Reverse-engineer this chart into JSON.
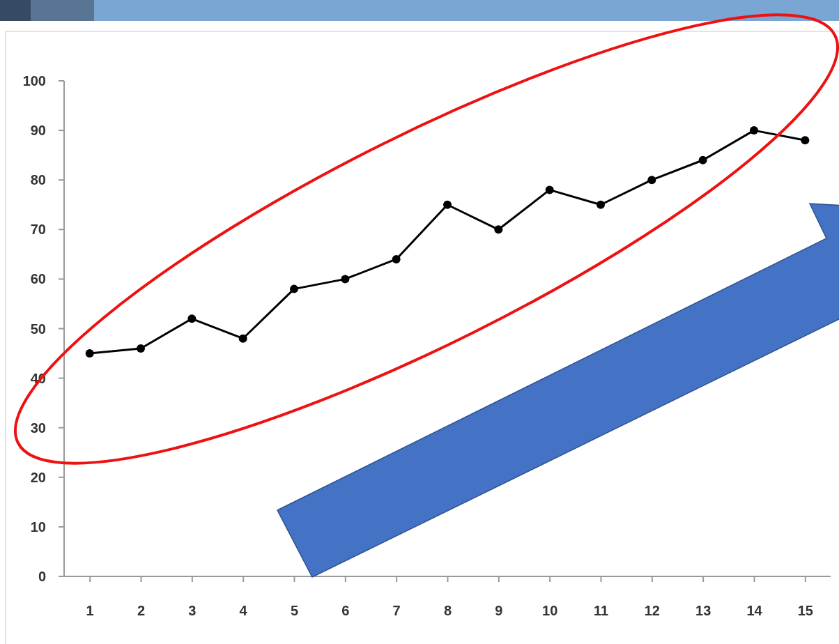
{
  "chart_data": {
    "type": "line",
    "x": [
      1,
      2,
      3,
      4,
      5,
      6,
      7,
      8,
      9,
      10,
      11,
      12,
      13,
      14,
      15
    ],
    "series": [
      {
        "color": "#000000",
        "values": [
          45,
          46,
          52,
          48,
          58,
          60,
          64,
          75,
          70,
          78,
          75,
          80,
          84,
          90,
          88
        ]
      }
    ],
    "xlim": [
      0.5,
      15.5
    ],
    "xticks": [
      1,
      2,
      3,
      4,
      5,
      6,
      7,
      8,
      9,
      10,
      11,
      12,
      13,
      14,
      15
    ],
    "ylim": [
      0,
      100
    ],
    "yticks": [
      0,
      10,
      20,
      30,
      40,
      50,
      60,
      70,
      80,
      90,
      100
    ],
    "marker": "circle",
    "line_style": "solid"
  }
}
